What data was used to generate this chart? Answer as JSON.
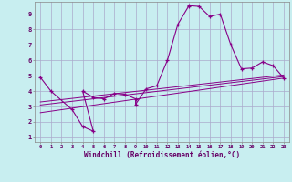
{
  "title": "",
  "xlabel": "Windchill (Refroidissement éolien,°C)",
  "ylabel": "",
  "bg_color": "#c8eef0",
  "line_color": "#880088",
  "grid_color": "#aaaacc",
  "xlim": [
    -0.5,
    23.5
  ],
  "ylim": [
    0.7,
    9.8
  ],
  "yticks": [
    1,
    2,
    3,
    4,
    5,
    6,
    7,
    8,
    9
  ],
  "xticks": [
    0,
    1,
    2,
    3,
    4,
    5,
    6,
    7,
    8,
    9,
    10,
    11,
    12,
    13,
    14,
    15,
    16,
    17,
    18,
    19,
    20,
    21,
    22,
    23
  ],
  "series": [
    [
      0,
      4.9
    ],
    [
      1,
      4.0
    ],
    [
      3,
      2.8
    ],
    [
      4,
      1.7
    ],
    [
      5,
      1.4
    ],
    [
      4,
      4.0
    ],
    [
      5,
      3.6
    ],
    [
      6,
      3.5
    ],
    [
      7,
      3.85
    ],
    [
      8,
      3.8
    ],
    [
      9,
      3.5
    ],
    [
      9,
      3.15
    ],
    [
      10,
      4.15
    ],
    [
      11,
      4.35
    ],
    [
      12,
      6.0
    ],
    [
      13,
      8.35
    ],
    [
      14,
      9.5
    ],
    [
      14,
      9.55
    ],
    [
      15,
      9.5
    ],
    [
      16,
      8.85
    ],
    [
      17,
      9.0
    ],
    [
      18,
      7.0
    ],
    [
      19,
      5.45
    ],
    [
      20,
      5.5
    ],
    [
      21,
      5.9
    ],
    [
      22,
      5.65
    ],
    [
      23,
      4.85
    ]
  ],
  "trend_lines": [
    [
      [
        0,
        2.6
      ],
      [
        23,
        4.85
      ]
    ],
    [
      [
        0,
        3.1
      ],
      [
        23,
        4.95
      ]
    ],
    [
      [
        0,
        3.3
      ],
      [
        23,
        5.05
      ]
    ]
  ]
}
